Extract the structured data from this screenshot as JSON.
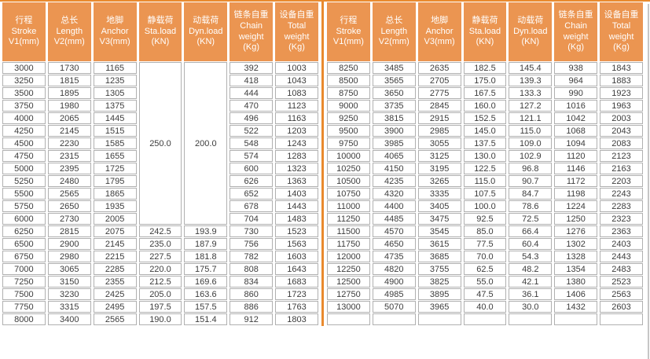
{
  "colors": {
    "header_background": "#EB9551",
    "accent_line": "#E98A2E",
    "cell_border": "#b0b0b0",
    "cell_text": "#3c3c3c",
    "header_text": "#ffffff"
  },
  "header_columns": [
    {
      "lines": [
        "行程",
        "Stroke",
        "V1(mm)"
      ]
    },
    {
      "lines": [
        "总长",
        "Length",
        "V2(mm)"
      ]
    },
    {
      "lines": [
        "地脚",
        "Anchor",
        "V3(mm)"
      ]
    },
    {
      "lines": [
        "静载荷",
        "Sta.load",
        "(KN)"
      ]
    },
    {
      "lines": [
        "动载荷",
        "Dyn.load",
        "(KN)"
      ]
    },
    {
      "lines": [
        "链条自重",
        "Chain",
        "weight",
        "(Kg)"
      ]
    },
    {
      "lines": [
        "设备自重",
        "Total",
        "weight",
        "(Kg)"
      ]
    }
  ],
  "left_table": {
    "merges": [
      {
        "col": 3,
        "row": 0,
        "span": 13,
        "value": "250.0"
      },
      {
        "col": 4,
        "row": 0,
        "span": 13,
        "value": "200.0"
      }
    ],
    "rows": [
      [
        "3000",
        "1730",
        "1165",
        null,
        null,
        "392",
        "1003"
      ],
      [
        "3250",
        "1815",
        "1235",
        null,
        null,
        "418",
        "1043"
      ],
      [
        "3500",
        "1895",
        "1305",
        null,
        null,
        "444",
        "1083"
      ],
      [
        "3750",
        "1980",
        "1375",
        null,
        null,
        "470",
        "1123"
      ],
      [
        "4000",
        "2065",
        "1445",
        null,
        null,
        "496",
        "1163"
      ],
      [
        "4250",
        "2145",
        "1515",
        null,
        null,
        "522",
        "1203"
      ],
      [
        "4500",
        "2230",
        "1585",
        null,
        null,
        "548",
        "1243"
      ],
      [
        "4750",
        "2315",
        "1655",
        null,
        null,
        "574",
        "1283"
      ],
      [
        "5000",
        "2395",
        "1725",
        null,
        null,
        "600",
        "1323"
      ],
      [
        "5250",
        "2480",
        "1795",
        null,
        null,
        "626",
        "1363"
      ],
      [
        "5500",
        "2565",
        "1865",
        null,
        null,
        "652",
        "1403"
      ],
      [
        "5750",
        "2650",
        "1935",
        null,
        null,
        "678",
        "1443"
      ],
      [
        "6000",
        "2730",
        "2005",
        null,
        null,
        "704",
        "1483"
      ],
      [
        "6250",
        "2815",
        "2075",
        "242.5",
        "193.9",
        "730",
        "1523"
      ],
      [
        "6500",
        "2900",
        "2145",
        "235.0",
        "187.9",
        "756",
        "1563"
      ],
      [
        "6750",
        "2980",
        "2215",
        "227.5",
        "181.8",
        "782",
        "1603"
      ],
      [
        "7000",
        "3065",
        "2285",
        "220.0",
        "175.7",
        "808",
        "1643"
      ],
      [
        "7250",
        "3150",
        "2355",
        "212.5",
        "169.6",
        "834",
        "1683"
      ],
      [
        "7500",
        "3230",
        "2425",
        "205.0",
        "163.6",
        "860",
        "1723"
      ],
      [
        "7750",
        "3315",
        "2495",
        "197.5",
        "157.5",
        "886",
        "1763"
      ],
      [
        "8000",
        "3400",
        "2565",
        "190.0",
        "151.4",
        "912",
        "1803"
      ]
    ]
  },
  "right_table": {
    "merges": [],
    "rows": [
      [
        "8250",
        "3485",
        "2635",
        "182.5",
        "145.4",
        "938",
        "1843"
      ],
      [
        "8500",
        "3565",
        "2705",
        "175.0",
        "139.3",
        "964",
        "1883"
      ],
      [
        "8750",
        "3650",
        "2775",
        "167.5",
        "133.3",
        "990",
        "1923"
      ],
      [
        "9000",
        "3735",
        "2845",
        "160.0",
        "127.2",
        "1016",
        "1963"
      ],
      [
        "9250",
        "3815",
        "2915",
        "152.5",
        "121.1",
        "1042",
        "2003"
      ],
      [
        "9500",
        "3900",
        "2985",
        "145.0",
        "115.0",
        "1068",
        "2043"
      ],
      [
        "9750",
        "3985",
        "3055",
        "137.5",
        "109.0",
        "1094",
        "2083"
      ],
      [
        "10000",
        "4065",
        "3125",
        "130.0",
        "102.9",
        "1120",
        "2123"
      ],
      [
        "10250",
        "4150",
        "3195",
        "122.5",
        "96.8",
        "1146",
        "2163"
      ],
      [
        "10500",
        "4235",
        "3265",
        "115.0",
        "90.7",
        "1172",
        "2203"
      ],
      [
        "10750",
        "4320",
        "3335",
        "107.5",
        "84.7",
        "1198",
        "2243"
      ],
      [
        "11000",
        "4400",
        "3405",
        "100.0",
        "78.6",
        "1224",
        "2283"
      ],
      [
        "11250",
        "4485",
        "3475",
        "92.5",
        "72.5",
        "1250",
        "2323"
      ],
      [
        "11500",
        "4570",
        "3545",
        "85.0",
        "66.4",
        "1276",
        "2363"
      ],
      [
        "11750",
        "4650",
        "3615",
        "77.5",
        "60.4",
        "1302",
        "2403"
      ],
      [
        "12000",
        "4735",
        "3685",
        "70.0",
        "54.3",
        "1328",
        "2443"
      ],
      [
        "12250",
        "4820",
        "3755",
        "62.5",
        "48.2",
        "1354",
        "2483"
      ],
      [
        "12500",
        "4900",
        "3825",
        "55.0",
        "42.1",
        "1380",
        "2523"
      ],
      [
        "12750",
        "4985",
        "3895",
        "47.5",
        "36.1",
        "1406",
        "2563"
      ],
      [
        "13000",
        "5070",
        "3965",
        "40.0",
        "30.0",
        "1432",
        "2603"
      ],
      [
        "",
        "",
        "",
        "",
        "",
        "",
        ""
      ]
    ]
  }
}
